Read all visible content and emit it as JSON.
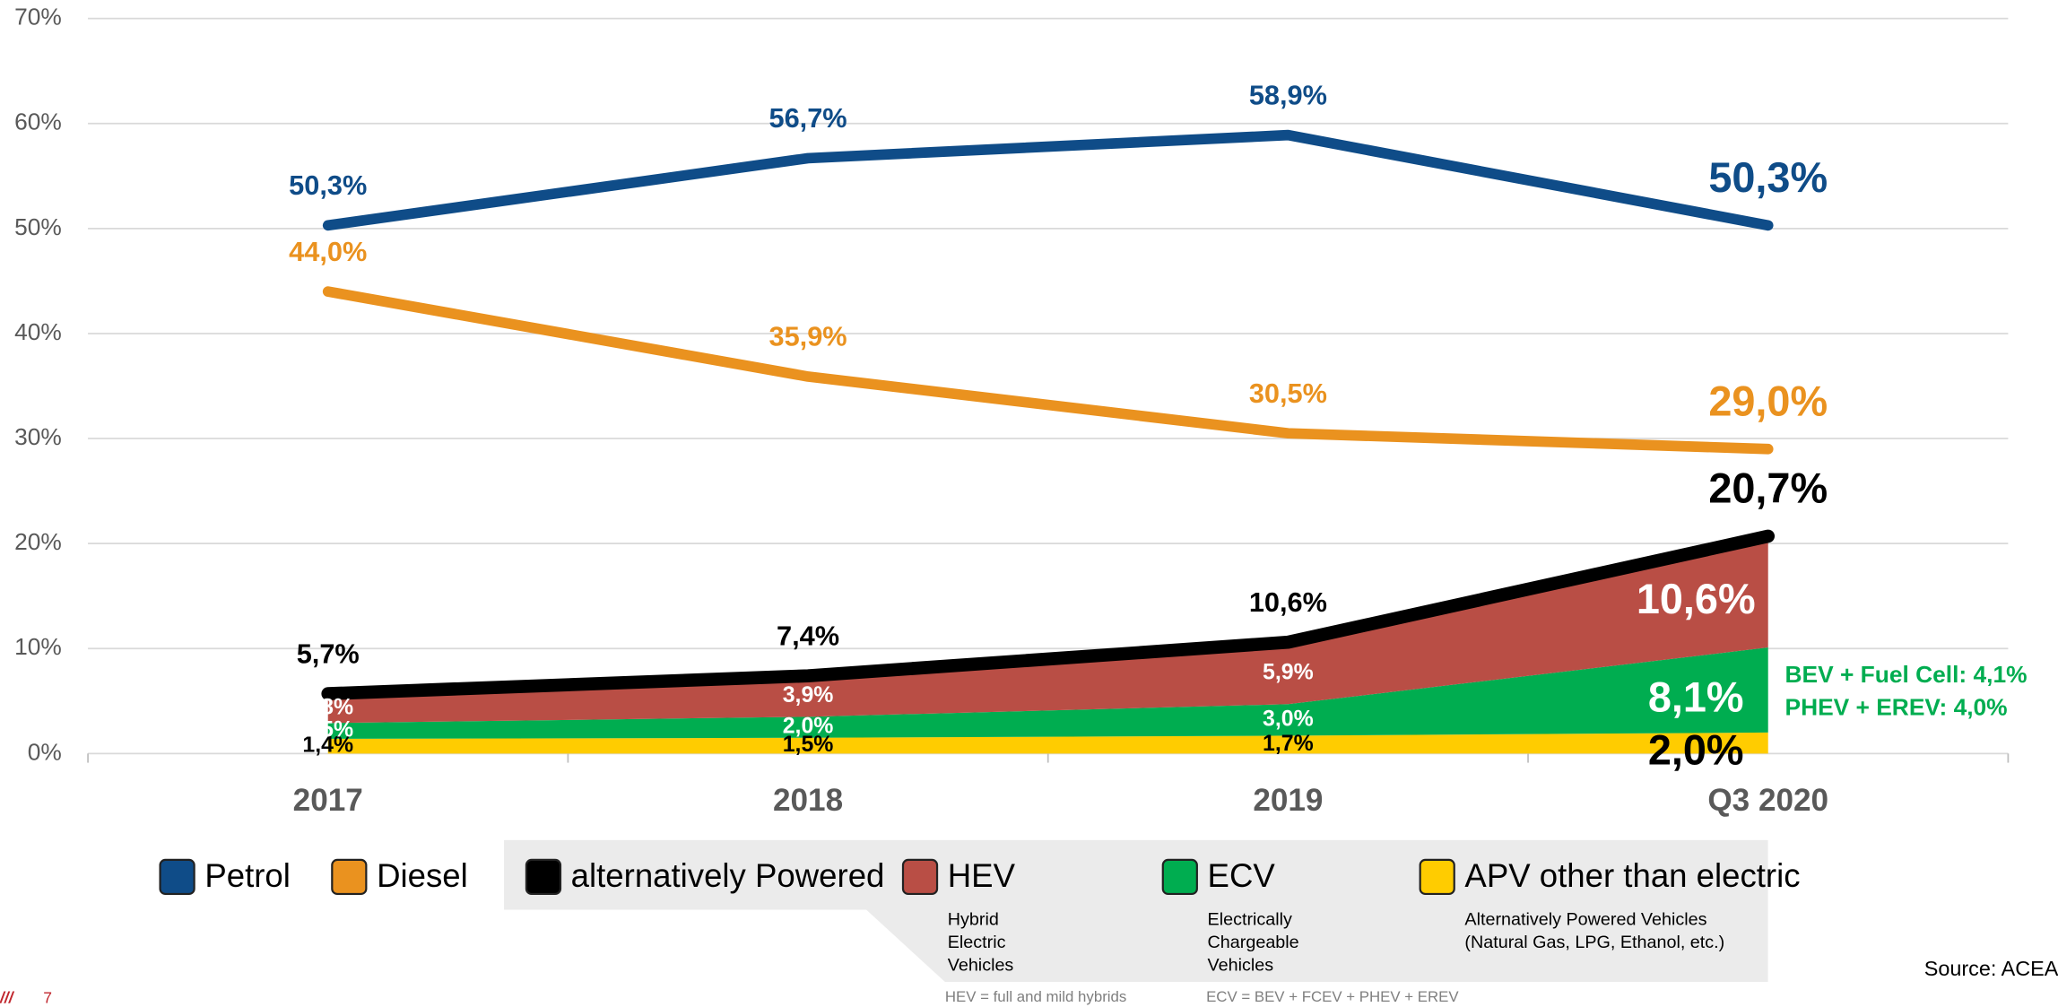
{
  "chart_data": {
    "type": "line",
    "categories": [
      "2017",
      "2018",
      "2019",
      "Q3 2020"
    ],
    "ylim": [
      0,
      70
    ],
    "yticks": [
      {
        "value": 0,
        "label": "0%"
      },
      {
        "value": 10,
        "label": "10%"
      },
      {
        "value": 20,
        "label": "20%"
      },
      {
        "value": 30,
        "label": "30%"
      },
      {
        "value": 40,
        "label": "40%"
      },
      {
        "value": 50,
        "label": "50%"
      },
      {
        "value": 60,
        "label": "60%"
      },
      {
        "value": 70,
        "label": "70%"
      }
    ],
    "grid": true,
    "series": [
      {
        "name": "Petrol",
        "type": "line",
        "color": "#0f4c88",
        "values": [
          50.3,
          56.7,
          58.9,
          50.3
        ],
        "value_labels": [
          "50,3%",
          "56,7%",
          "58,9%",
          "50,3%"
        ]
      },
      {
        "name": "Diesel",
        "type": "line",
        "color": "#ea921f",
        "values": [
          44.0,
          35.9,
          30.5,
          29.0
        ],
        "value_labels": [
          "44,0%",
          "35,9%",
          "30,5%",
          "29,0%"
        ]
      },
      {
        "name": "alternatively Powered",
        "type": "line",
        "color": "#000000",
        "values": [
          5.7,
          7.4,
          10.6,
          20.7
        ],
        "value_labels": [
          "5,7%",
          "7,4%",
          "10,6%",
          "20,7%"
        ]
      },
      {
        "name": "HEV",
        "type": "area",
        "color": "#b94e45",
        "label_color": "#ffffff",
        "values": [
          2.8,
          3.9,
          5.9,
          10.6
        ],
        "value_labels": [
          "2,8%",
          "3,9%",
          "5,9%",
          "10,6%"
        ],
        "description": [
          "Hybrid",
          "Electric",
          "Vehicles"
        ]
      },
      {
        "name": "ECV",
        "type": "area",
        "color": "#00ad50",
        "label_color": "#ffffff",
        "values": [
          1.5,
          2.0,
          3.0,
          8.1
        ],
        "value_labels": [
          "1,5%",
          "2,0%",
          "3,0%",
          "8,1%"
        ],
        "description": [
          "Electrically",
          "Chargeable",
          "Vehicles"
        ]
      },
      {
        "name": "APV other than electric",
        "type": "area",
        "color": "#ffcc00",
        "label_color": "#000000",
        "values": [
          1.4,
          1.5,
          1.7,
          2.0
        ],
        "value_labels": [
          "1,4%",
          "1,5%",
          "1,7%",
          "2,0%"
        ],
        "description": [
          "Alternatively Powered Vehicles",
          "(Natural Gas, LPG, Ethanol, etc.)"
        ]
      }
    ],
    "annotations": [
      {
        "text": "BEV + Fuel Cell: 4,1%",
        "color": "#00ad50"
      },
      {
        "text": "PHEV + EREV: 4,0%",
        "color": "#00ad50"
      }
    ],
    "footnotes": [
      "HEV = full and mild hybrids",
      "ECV = BEV + FCEV + PHEV + EREV"
    ],
    "source": "Source: ACEA"
  },
  "footer": {
    "logo": "///",
    "page": "7"
  }
}
